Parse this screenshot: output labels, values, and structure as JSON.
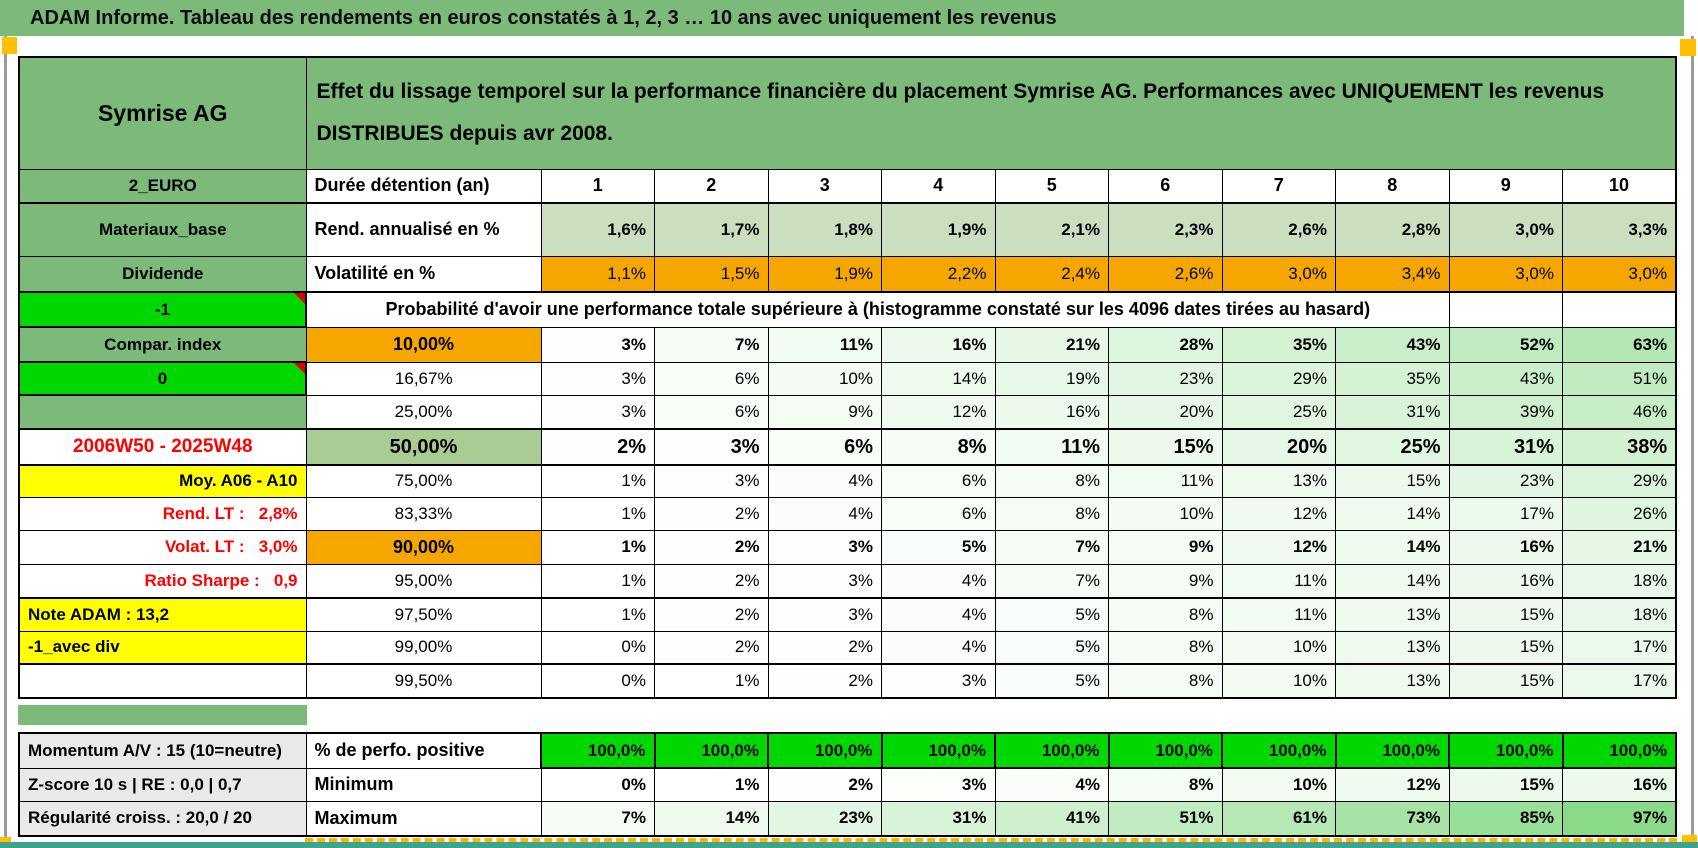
{
  "title": "ADAM Informe. Tableau des rendements en euros constatés à 1, 2, 3 … 10 ans avec uniquement les revenus",
  "header": {
    "asset": "Symrise AG",
    "description": "Effet du lissage temporel sur la performance financière du placement Symrise AG. Performances avec UNIQUEMENT les revenus DISTRIBUES depuis avr 2008."
  },
  "columns": {
    "a": "2_EURO",
    "b": "Durée détention (an)",
    "years": [
      "1",
      "2",
      "3",
      "4",
      "5",
      "6",
      "7",
      "8",
      "9",
      "10"
    ]
  },
  "stat_rows": [
    {
      "a": "Materiaux_base",
      "b": "Rend. annualisé en %",
      "values": [
        "1,6%",
        "1,7%",
        "1,8%",
        "1,9%",
        "2,1%",
        "2,3%",
        "2,6%",
        "2,8%",
        "3,0%",
        "3,3%"
      ]
    },
    {
      "a": "Dividende",
      "b": "Volatilité en %",
      "values": [
        "1,1%",
        "1,5%",
        "1,9%",
        "2,2%",
        "2,4%",
        "2,6%",
        "3,0%",
        "3,4%",
        "3,0%",
        "3,0%"
      ]
    }
  ],
  "probability": {
    "a_label": "-1",
    "heading": "Probabilité d'avoir une performance totale supérieure à (histogramme constaté sur les 4096 dates tirées au hasard)",
    "rows": [
      {
        "a": "Compar. index",
        "threshold": "10,00%",
        "values": [
          3,
          7,
          11,
          16,
          21,
          28,
          35,
          43,
          52,
          63
        ]
      },
      {
        "a": "0",
        "threshold": "16,67%",
        "values": [
          3,
          6,
          10,
          14,
          19,
          23,
          29,
          35,
          43,
          51
        ]
      },
      {
        "a": "",
        "threshold": "25,00%",
        "values": [
          3,
          6,
          9,
          12,
          16,
          20,
          25,
          31,
          39,
          46
        ]
      },
      {
        "a": "2006W50 - 2025W48",
        "threshold": "50,00%",
        "values": [
          2,
          3,
          6,
          8,
          11,
          15,
          20,
          25,
          31,
          38
        ]
      },
      {
        "a": "Moy. A06 - A10",
        "threshold": "75,00%",
        "values": [
          1,
          3,
          4,
          6,
          8,
          11,
          13,
          15,
          23,
          29
        ]
      },
      {
        "a": "Rend. LT :   2,8%",
        "threshold": "83,33%",
        "values": [
          1,
          2,
          4,
          6,
          8,
          10,
          12,
          14,
          17,
          26
        ]
      },
      {
        "a": "Volat. LT :   3,0%",
        "threshold": "90,00%",
        "values": [
          1,
          2,
          3,
          5,
          7,
          9,
          12,
          14,
          16,
          21
        ]
      },
      {
        "a": "Ratio Sharpe :   0,9",
        "threshold": "95,00%",
        "values": [
          1,
          2,
          3,
          4,
          7,
          9,
          11,
          14,
          16,
          18
        ]
      },
      {
        "a": "Note ADAM : 13,2",
        "threshold": "97,50%",
        "values": [
          1,
          2,
          3,
          4,
          5,
          8,
          11,
          13,
          15,
          18
        ]
      },
      {
        "a": "-1_avec div",
        "threshold": "99,00%",
        "values": [
          0,
          2,
          2,
          4,
          5,
          8,
          10,
          13,
          15,
          17
        ]
      },
      {
        "a": "",
        "threshold": "99,50%",
        "values": [
          0,
          1,
          2,
          3,
          5,
          8,
          10,
          13,
          15,
          17
        ]
      }
    ]
  },
  "bottom": {
    "rows": [
      {
        "a": "Momentum A/V : 15 (10=neutre)",
        "b": "% de perfo. positive",
        "values": [
          "100,0%",
          "100,0%",
          "100,0%",
          "100,0%",
          "100,0%",
          "100,0%",
          "100,0%",
          "100,0%",
          "100,0%",
          "100,0%"
        ]
      },
      {
        "a": "Z-score 10 s | RE : 0,0 | 0,7",
        "b": "Minimum",
        "values": [
          0,
          1,
          2,
          3,
          4,
          8,
          10,
          12,
          15,
          16
        ]
      },
      {
        "a": "Régularité croiss. : 20,0 / 20",
        "b": "Maximum",
        "values": [
          7,
          14,
          23,
          31,
          41,
          51,
          61,
          73,
          85,
          97
        ]
      }
    ]
  },
  "colors": {
    "band_green": "#7cba7a",
    "bright_green": "#00d800",
    "orange": "#f5a700",
    "sage": "#cbdfc0",
    "sage_mid": "#a9cc92",
    "yellow": "#ffff00",
    "gray_label": "#e9e9e9",
    "red_text": "#fe0000",
    "tint_full": "#86d986",
    "page_break_orange": "#ffc000",
    "bottom_strip": "#3fa48e"
  }
}
